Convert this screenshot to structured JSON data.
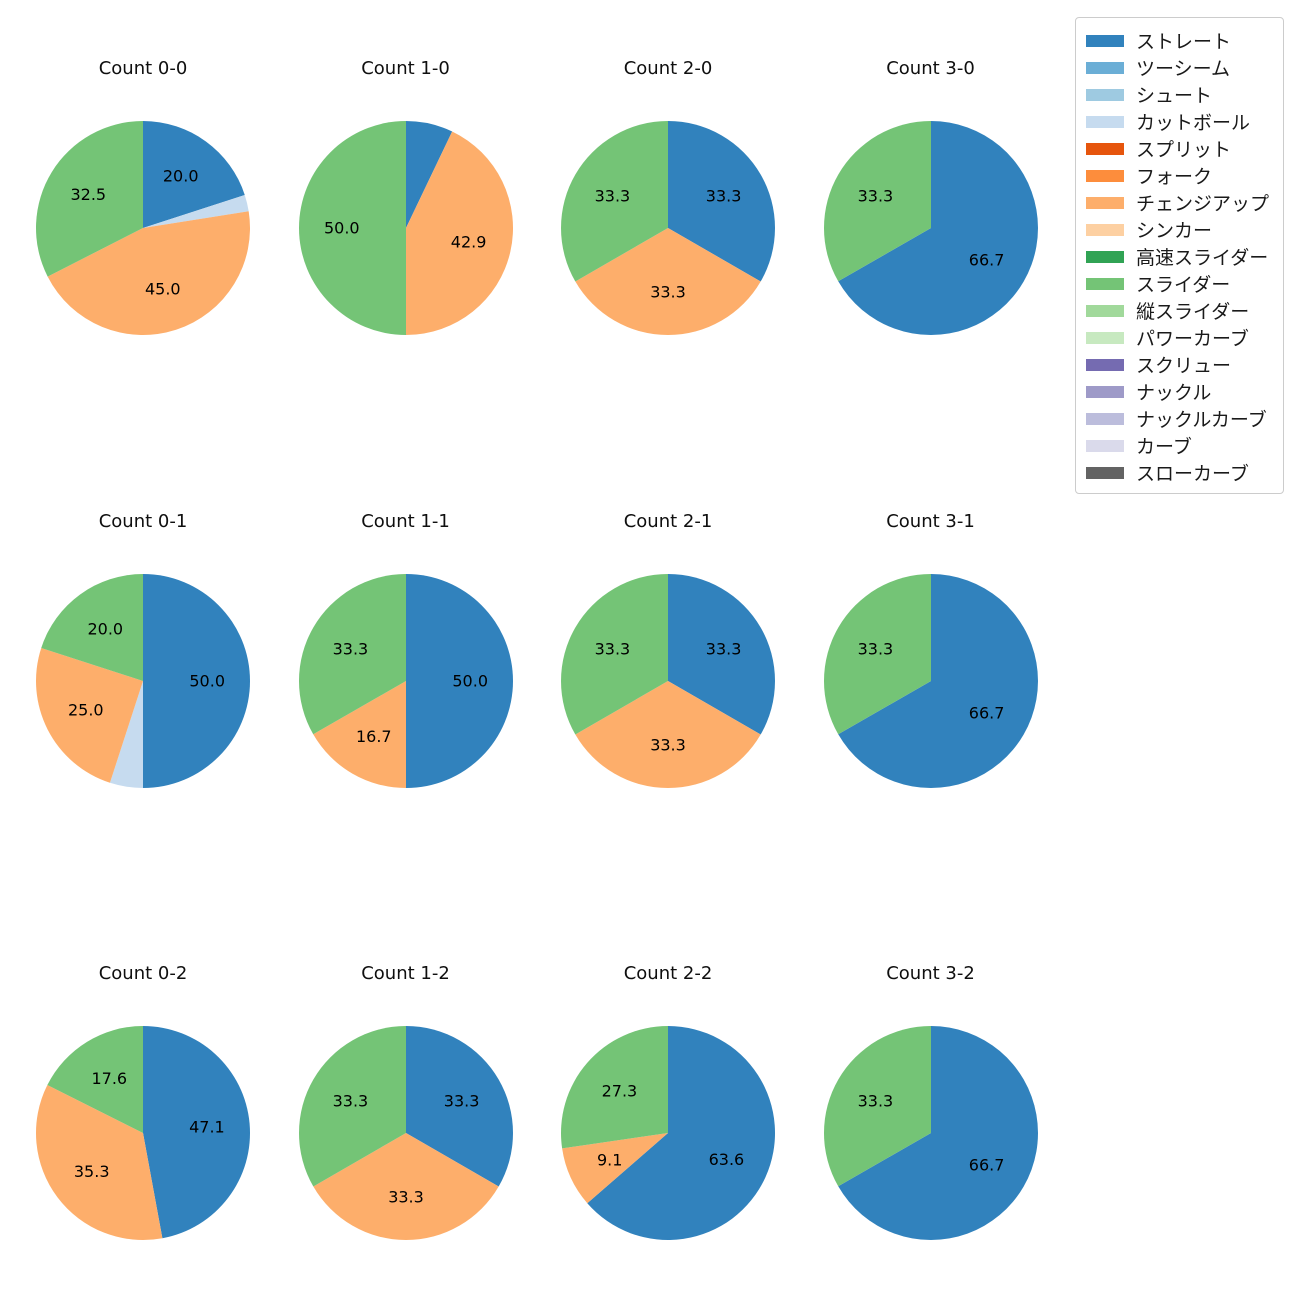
{
  "palette": {
    "ストレート": "#3182bd",
    "ツーシーム": "#6baed6",
    "シュート": "#9ecae1",
    "カットボール": "#c6dbef",
    "スプリット": "#e6550d",
    "フォーク": "#fd8d3c",
    "チェンジアップ": "#fdae6b",
    "シンカー": "#fdd0a2",
    "高速スライダー": "#31a354",
    "スライダー": "#74c476",
    "縦スライダー": "#a1d99b",
    "パワーカーブ": "#c7e9c0",
    "スクリュー": "#756bb1",
    "ナックル": "#9e9ac8",
    "ナックルカーブ": "#bcbddc",
    "カーブ": "#dadaeb",
    "スローカーブ": "#636363"
  },
  "legend": {
    "position": "upper right",
    "entries": [
      "ストレート",
      "ツーシーム",
      "シュート",
      "カットボール",
      "スプリット",
      "フォーク",
      "チェンジアップ",
      "シンカー",
      "高速スライダー",
      "スライダー",
      "縦スライダー",
      "パワーカーブ",
      "スクリュー",
      "ナックル",
      "ナックルカーブ",
      "カーブ",
      "スローカーブ"
    ]
  },
  "chart_data": [
    {
      "type": "pie",
      "title": "Count 0-0",
      "start_angle": 90,
      "direction": "clockwise",
      "labels": [
        "ストレート",
        "カットボール",
        "チェンジアップ",
        "スライダー"
      ],
      "values": [
        20.0,
        2.5,
        45.0,
        32.5
      ],
      "pct_labels": [
        "20.0",
        "",
        "45.0",
        "32.5"
      ]
    },
    {
      "type": "pie",
      "title": "Count 1-0",
      "start_angle": 90,
      "direction": "clockwise",
      "labels": [
        "ストレート",
        "チェンジアップ",
        "スライダー"
      ],
      "values": [
        7.1,
        42.9,
        50.0
      ],
      "pct_labels": [
        "",
        "42.9",
        "50.0"
      ]
    },
    {
      "type": "pie",
      "title": "Count 2-0",
      "start_angle": 90,
      "direction": "clockwise",
      "labels": [
        "ストレート",
        "チェンジアップ",
        "スライダー"
      ],
      "values": [
        33.3,
        33.3,
        33.3
      ],
      "pct_labels": [
        "33.3",
        "33.3",
        "33.3"
      ]
    },
    {
      "type": "pie",
      "title": "Count 3-0",
      "start_angle": 90,
      "direction": "clockwise",
      "labels": [
        "ストレート",
        "スライダー"
      ],
      "values": [
        66.7,
        33.3
      ],
      "pct_labels": [
        "66.7",
        "33.3"
      ]
    },
    {
      "type": "pie",
      "title": "Count 0-1",
      "start_angle": 90,
      "direction": "clockwise",
      "labels": [
        "ストレート",
        "カットボール",
        "チェンジアップ",
        "スライダー"
      ],
      "values": [
        50.0,
        5.0,
        25.0,
        20.0
      ],
      "pct_labels": [
        "50.0",
        "",
        "25.0",
        "20.0"
      ]
    },
    {
      "type": "pie",
      "title": "Count 1-1",
      "start_angle": 90,
      "direction": "clockwise",
      "labels": [
        "ストレート",
        "チェンジアップ",
        "スライダー"
      ],
      "values": [
        50.0,
        16.7,
        33.3
      ],
      "pct_labels": [
        "50.0",
        "16.7",
        "33.3"
      ]
    },
    {
      "type": "pie",
      "title": "Count 2-1",
      "start_angle": 90,
      "direction": "clockwise",
      "labels": [
        "ストレート",
        "チェンジアップ",
        "スライダー"
      ],
      "values": [
        33.3,
        33.3,
        33.3
      ],
      "pct_labels": [
        "33.3",
        "33.3",
        "33.3"
      ]
    },
    {
      "type": "pie",
      "title": "Count 3-1",
      "start_angle": 90,
      "direction": "clockwise",
      "labels": [
        "ストレート",
        "スライダー"
      ],
      "values": [
        66.7,
        33.3
      ],
      "pct_labels": [
        "66.7",
        "33.3"
      ]
    },
    {
      "type": "pie",
      "title": "Count 0-2",
      "start_angle": 90,
      "direction": "clockwise",
      "labels": [
        "ストレート",
        "チェンジアップ",
        "スライダー"
      ],
      "values": [
        47.1,
        35.3,
        17.6
      ],
      "pct_labels": [
        "47.1",
        "35.3",
        "17.6"
      ]
    },
    {
      "type": "pie",
      "title": "Count 1-2",
      "start_angle": 90,
      "direction": "clockwise",
      "labels": [
        "ストレート",
        "チェンジアップ",
        "スライダー"
      ],
      "values": [
        33.3,
        33.3,
        33.3
      ],
      "pct_labels": [
        "33.3",
        "33.3",
        "33.3"
      ]
    },
    {
      "type": "pie",
      "title": "Count 2-2",
      "start_angle": 90,
      "direction": "clockwise",
      "labels": [
        "ストレート",
        "チェンジアップ",
        "スライダー"
      ],
      "values": [
        63.6,
        9.1,
        27.3
      ],
      "pct_labels": [
        "63.6",
        "9.1",
        "27.3"
      ]
    },
    {
      "type": "pie",
      "title": "Count 3-2",
      "start_angle": 90,
      "direction": "clockwise",
      "labels": [
        "ストレート",
        "スライダー"
      ],
      "values": [
        66.7,
        33.3
      ],
      "pct_labels": [
        "66.7",
        "33.3"
      ]
    }
  ]
}
